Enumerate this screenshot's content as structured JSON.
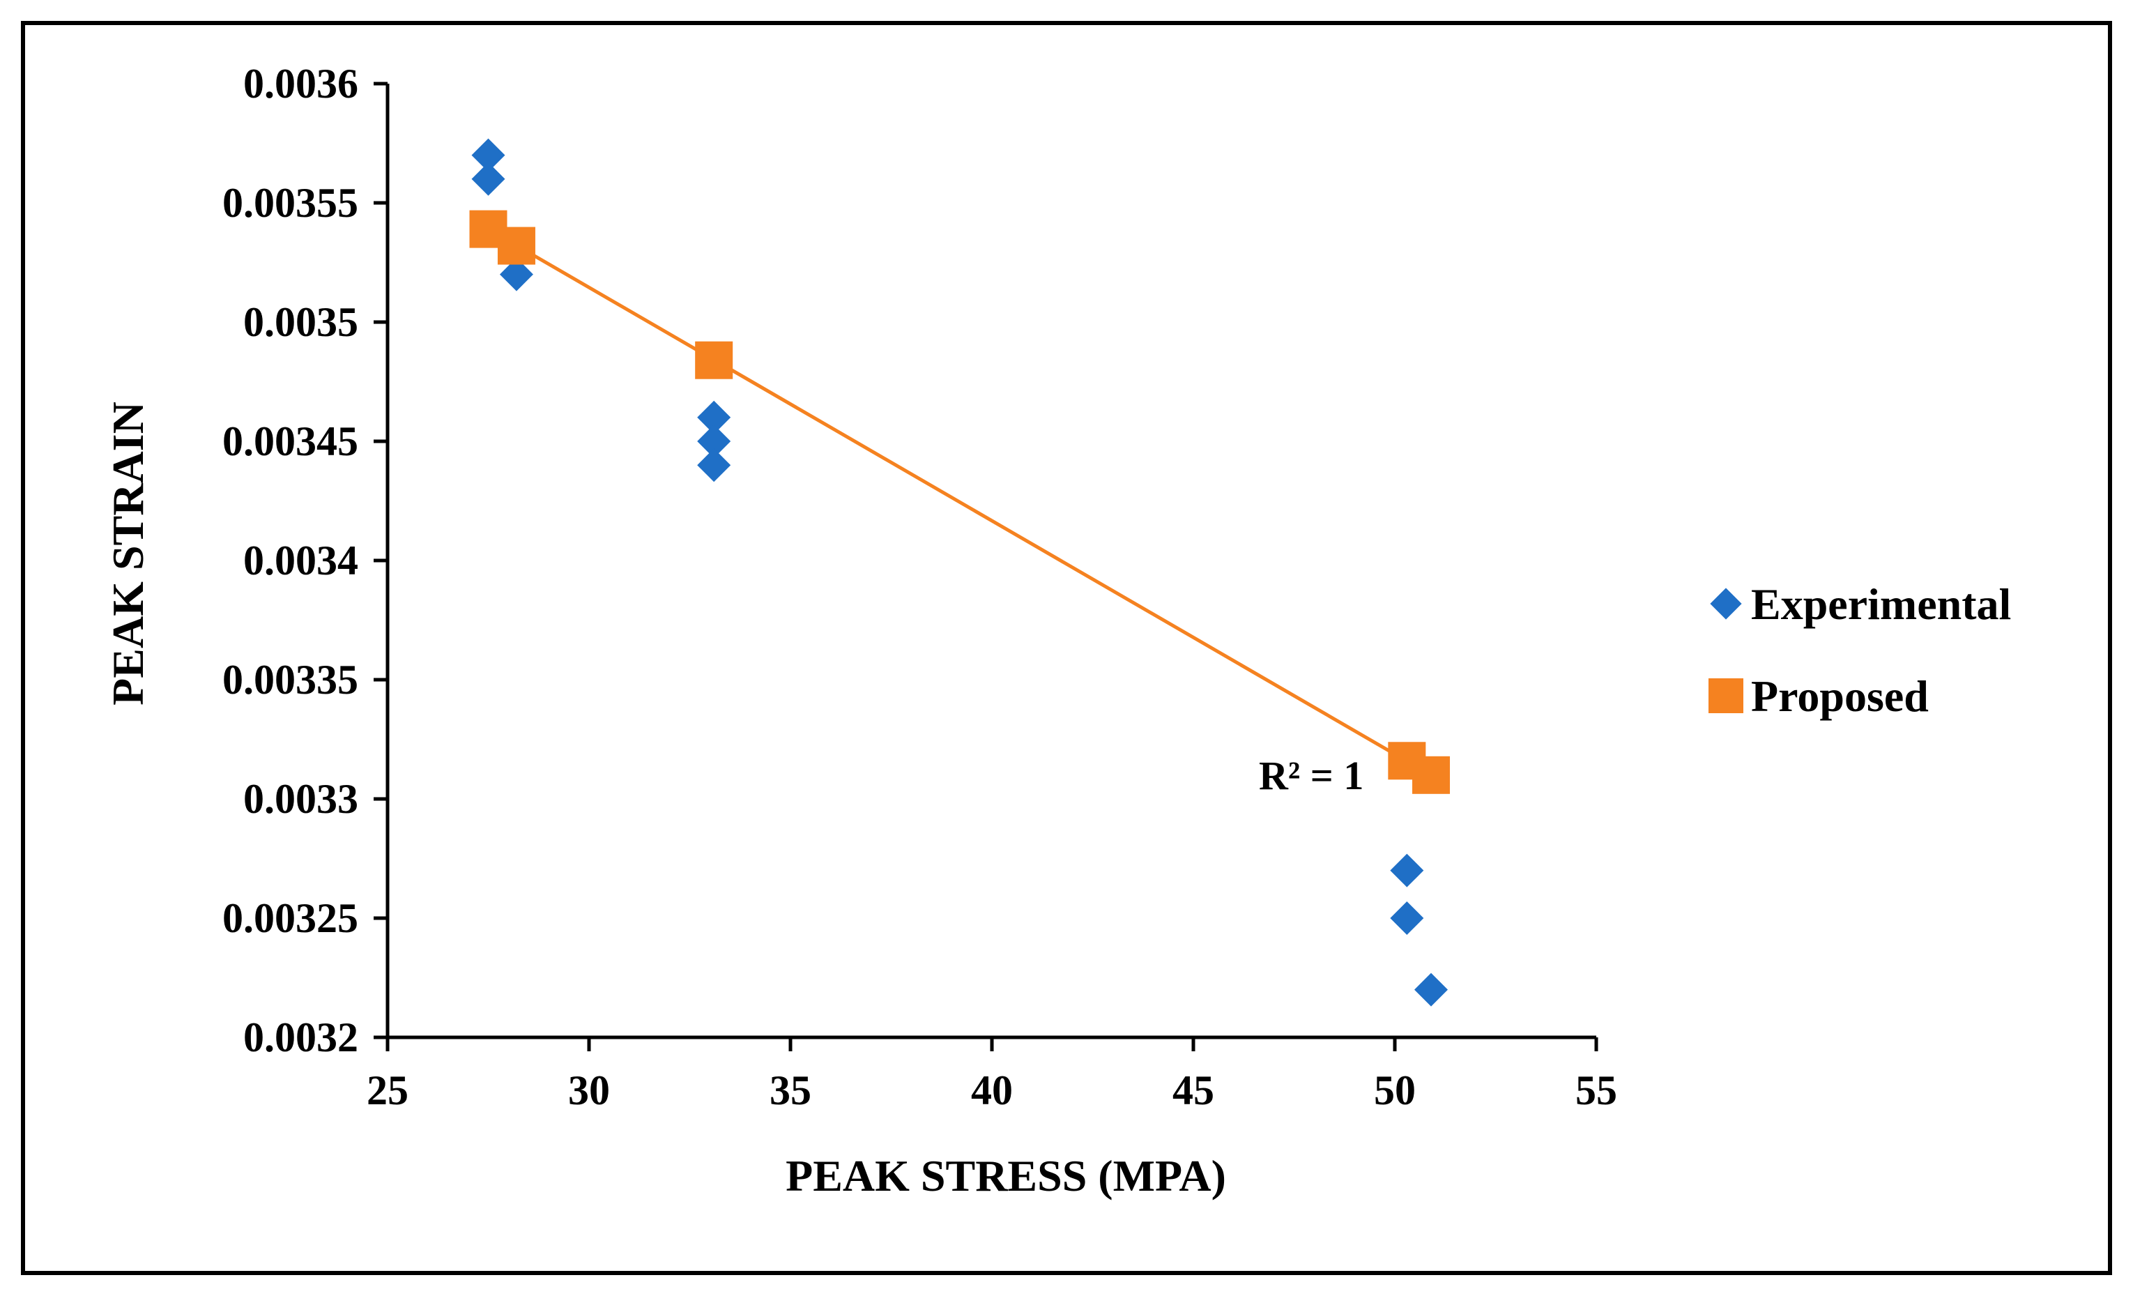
{
  "chart_data": {
    "type": "scatter",
    "title": "",
    "xlabel": "PEAK STRESS (MPA)",
    "ylabel": "PEAK STRAIN",
    "xlim": [
      25,
      55
    ],
    "ylim": [
      0.0032,
      0.0036
    ],
    "x_ticks": [
      25,
      30,
      35,
      40,
      45,
      50,
      55
    ],
    "y_ticks": [
      0.0032,
      0.00325,
      0.0033,
      0.00335,
      0.0034,
      0.00345,
      0.0035,
      0.00355,
      0.0036
    ],
    "x_tick_labels": [
      "25",
      "30",
      "35",
      "40",
      "45",
      "50",
      "55"
    ],
    "y_tick_labels": [
      "0.0032",
      "0.00325",
      "0.0033",
      "0.00335",
      "0.0034",
      "0.00345",
      "0.0035",
      "0.00355",
      "0.0036"
    ],
    "grid": false,
    "legend_position": "right",
    "series": [
      {
        "name": "Experimental",
        "marker": "diamond",
        "color": "#1F6FC6",
        "points": [
          {
            "x": 27.5,
            "y": 0.00357
          },
          {
            "x": 27.5,
            "y": 0.00356
          },
          {
            "x": 28.2,
            "y": 0.00352
          },
          {
            "x": 33.1,
            "y": 0.00346
          },
          {
            "x": 33.1,
            "y": 0.00345
          },
          {
            "x": 33.1,
            "y": 0.00344
          },
          {
            "x": 50.3,
            "y": 0.00327
          },
          {
            "x": 50.3,
            "y": 0.00325
          },
          {
            "x": 50.9,
            "y": 0.00322
          }
        ]
      },
      {
        "name": "Proposed",
        "marker": "square",
        "color": "#F58220",
        "trendline": true,
        "points": [
          {
            "x": 27.5,
            "y": 0.003539
          },
          {
            "x": 28.2,
            "y": 0.003532
          },
          {
            "x": 33.1,
            "y": 0.003484
          },
          {
            "x": 50.3,
            "y": 0.003316
          },
          {
            "x": 50.9,
            "y": 0.00331
          }
        ]
      }
    ],
    "annotations": [
      {
        "text": "R² = 1",
        "x": 47.4,
        "y": 0.00331
      }
    ]
  }
}
